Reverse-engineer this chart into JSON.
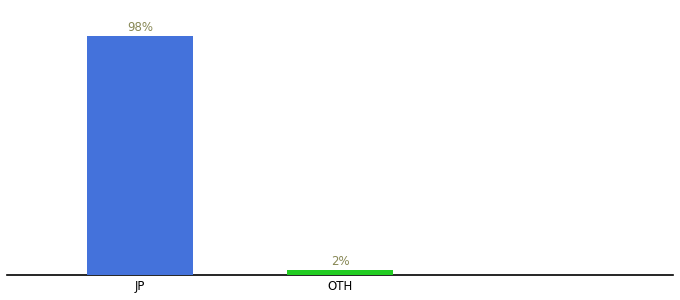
{
  "categories": [
    "JP",
    "OTH"
  ],
  "values": [
    98,
    2
  ],
  "bar_colors": [
    "#4472db",
    "#22cc22"
  ],
  "label_colors": [
    "#888855",
    "#888855"
  ],
  "labels": [
    "98%",
    "2%"
  ],
  "ylim": [
    0,
    110
  ],
  "xlim": [
    -0.5,
    4.5
  ],
  "background_color": "#ffffff",
  "bar_width": 0.8,
  "label_fontsize": 8.5,
  "tick_fontsize": 8.5,
  "x_positions": [
    0.5,
    2.0
  ]
}
